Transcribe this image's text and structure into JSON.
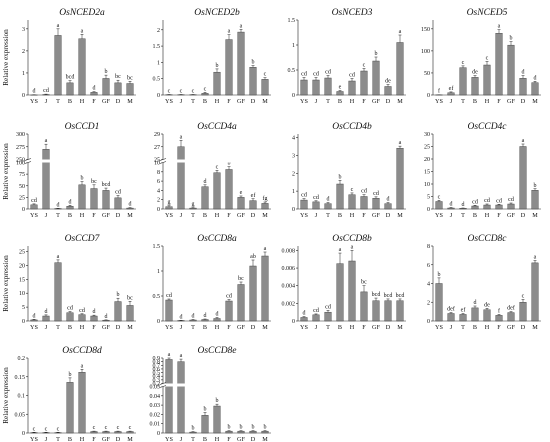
{
  "chart_data": [
    {
      "type": "bar",
      "title": "OsNCED2a",
      "ylabel": "Relative expression",
      "categories": [
        "YS",
        "J",
        "T",
        "B",
        "H",
        "F",
        "GF",
        "D",
        "M"
      ],
      "values": [
        0.003,
        0.02,
        2.7,
        0.55,
        2.55,
        0.12,
        0.75,
        0.55,
        0.52
      ],
      "errors": [
        0.01,
        0.02,
        0.3,
        0.1,
        0.2,
        0.03,
        0.15,
        0.12,
        0.1
      ],
      "letters": [
        "d",
        "cd",
        "a",
        "bcd",
        "a",
        "d",
        "b",
        "bc",
        "bc"
      ],
      "yticks": [
        0,
        1,
        2,
        3
      ],
      "ylim": [
        0,
        3.4
      ]
    },
    {
      "type": "bar",
      "title": "OsNCED2b",
      "ylabel": "",
      "categories": [
        "YS",
        "J",
        "T",
        "B",
        "H",
        "F",
        "GF",
        "D",
        "M"
      ],
      "values": [
        0.01,
        0.01,
        0.01,
        0.05,
        0.7,
        1.7,
        1.93,
        0.85,
        0.48
      ],
      "errors": [
        0.005,
        0.005,
        0.005,
        0.03,
        0.1,
        0.15,
        0.08,
        0.05,
        0.05
      ],
      "letters": [
        "c",
        "c",
        "c",
        "c",
        "b",
        "a",
        "a",
        "b",
        "c"
      ],
      "yticks": [
        0,
        0.5,
        1,
        1.5,
        2
      ],
      "ylim": [
        0,
        2.3
      ]
    },
    {
      "type": "bar",
      "title": "OsNCED3",
      "ylabel": "",
      "categories": [
        "YS",
        "J",
        "T",
        "B",
        "H",
        "F",
        "GF",
        "D",
        "M"
      ],
      "values": [
        0.3,
        0.3,
        0.34,
        0.07,
        0.28,
        0.48,
        0.68,
        0.17,
        1.05
      ],
      "errors": [
        0.05,
        0.05,
        0.05,
        0.02,
        0.05,
        0.05,
        0.08,
        0.04,
        0.15
      ],
      "letters": [
        "cd",
        "cd",
        "cd",
        "e",
        "cd",
        "c",
        "b",
        "de",
        "a"
      ],
      "yticks": [
        0,
        0.5,
        1,
        1.5
      ],
      "ylim": [
        0,
        1.5
      ]
    },
    {
      "type": "bar",
      "title": "OsNCED5",
      "ylabel": "",
      "categories": [
        "YS",
        "J",
        "T",
        "B",
        "H",
        "F",
        "GF",
        "D",
        "M"
      ],
      "values": [
        0.4,
        5,
        62,
        40,
        68,
        140,
        113,
        38,
        28
      ],
      "errors": [
        0.2,
        2,
        4,
        4,
        8,
        8,
        8,
        6,
        3
      ],
      "letters": [
        "f",
        "ef",
        "c",
        "de",
        "c",
        "a",
        "b",
        "d",
        "d"
      ],
      "yticks": [
        0,
        50,
        100,
        150
      ],
      "ylim": [
        0,
        170
      ]
    },
    {
      "type": "bar",
      "title": "OsCCD1",
      "ylabel": "Relative expression",
      "categories": [
        "YS",
        "J",
        "T",
        "B",
        "H",
        "F",
        "GF",
        "D",
        "M"
      ],
      "values": [
        9,
        270,
        1,
        6,
        52,
        44,
        40,
        24,
        2
      ],
      "errors": [
        2,
        10,
        0.5,
        2,
        7,
        8,
        5,
        5,
        1
      ],
      "letters": [
        "cd",
        "a",
        "d",
        "d",
        "b",
        "bc",
        "bcd",
        "cd",
        "d"
      ],
      "yticks": [
        0,
        25,
        50,
        75,
        100,
        250,
        275,
        300
      ],
      "ylim": [
        0,
        300
      ],
      "break": [
        100,
        250
      ]
    },
    {
      "type": "bar",
      "title": "OsCCD4a",
      "ylabel": "",
      "categories": [
        "YS",
        "J",
        "T",
        "B",
        "H",
        "F",
        "GF",
        "D",
        "M"
      ],
      "values": [
        0.5,
        27,
        0.2,
        4.8,
        7.8,
        8.5,
        2.5,
        1.8,
        1.2
      ],
      "errors": [
        0.2,
        1,
        0.1,
        0.4,
        0.5,
        0.6,
        0.3,
        0.4,
        0.3
      ],
      "letters": [
        "g",
        "a",
        "g",
        "d",
        "c",
        "b",
        "e",
        "ef",
        "fg"
      ],
      "yticks": [
        0,
        2,
        4,
        6,
        8,
        10,
        25,
        27,
        29
      ],
      "ylim": [
        0,
        29
      ],
      "break": [
        10,
        25
      ]
    },
    {
      "type": "bar",
      "title": "OsCCD4b",
      "ylabel": "",
      "categories": [
        "YS",
        "J",
        "T",
        "B",
        "H",
        "F",
        "GF",
        "D",
        "M"
      ],
      "values": [
        0.5,
        0.4,
        0.3,
        1.4,
        0.8,
        0.7,
        0.6,
        0.3,
        3.4
      ],
      "errors": [
        0.08,
        0.06,
        0.06,
        0.2,
        0.1,
        0.1,
        0.08,
        0.06,
        0.12
      ],
      "letters": [
        "cd",
        "cd",
        "d",
        "b",
        "c",
        "cd",
        "cd",
        "d",
        "a"
      ],
      "yticks": [
        0,
        1,
        2,
        3,
        4
      ],
      "ylim": [
        0,
        4.2
      ]
    },
    {
      "type": "bar",
      "title": "OsCCD4c",
      "ylabel": "",
      "categories": [
        "YS",
        "J",
        "T",
        "B",
        "H",
        "F",
        "GF",
        "D",
        "M"
      ],
      "values": [
        3,
        0.4,
        0.3,
        1.2,
        1.6,
        1.6,
        2,
        25,
        7.5
      ],
      "errors": [
        0.5,
        0.2,
        0.1,
        0.3,
        0.4,
        0.3,
        0.4,
        1,
        0.6
      ],
      "letters": [
        "c",
        "d",
        "d",
        "cd",
        "cd",
        "cd",
        "cd",
        "a",
        "b"
      ],
      "yticks": [
        0,
        5,
        10,
        15,
        20,
        25,
        30
      ],
      "ylim": [
        0,
        30
      ]
    },
    {
      "type": "bar",
      "title": "OsCCD7",
      "ylabel": "Relative expression",
      "categories": [
        "YS",
        "J",
        "T",
        "B",
        "H",
        "F",
        "GF",
        "D",
        "M"
      ],
      "values": [
        0.4,
        1.8,
        21,
        3,
        2.3,
        1.8,
        0.3,
        7,
        5.6
      ],
      "errors": [
        0.2,
        0.4,
        1,
        0.4,
        0.3,
        0.3,
        0.1,
        1.2,
        1.5
      ],
      "letters": [
        "d",
        "d",
        "a",
        "cd",
        "cd",
        "d",
        "d",
        "b",
        "bc"
      ],
      "yticks": [
        0,
        5,
        10,
        15,
        20,
        25
      ],
      "ylim": [
        0,
        27
      ]
    },
    {
      "type": "bar",
      "title": "OsCCD8a",
      "ylabel": "",
      "categories": [
        "YS",
        "J",
        "T",
        "B",
        "H",
        "F",
        "GF",
        "D",
        "M"
      ],
      "values": [
        0.42,
        0.01,
        0.02,
        0.03,
        0.05,
        0.4,
        0.73,
        1.1,
        1.3
      ],
      "errors": [
        0.02,
        0.005,
        0.01,
        0.01,
        0.02,
        0.03,
        0.05,
        0.12,
        0.08
      ],
      "letters": [
        "cd",
        "d",
        "d",
        "d",
        "d",
        "cd",
        "bc",
        "ab",
        "a"
      ],
      "yticks": [
        0,
        0.5,
        1,
        1.5
      ],
      "ylim": [
        0,
        1.5
      ]
    },
    {
      "type": "bar",
      "title": "OsCCD8b",
      "ylabel": "",
      "categories": [
        "YS",
        "J",
        "T",
        "B",
        "H",
        "F",
        "GF",
        "D",
        "M"
      ],
      "values": [
        0.0004,
        0.0007,
        0.001,
        0.0065,
        0.0068,
        0.0033,
        0.0023,
        0.0023,
        0.0023
      ],
      "errors": [
        0.0001,
        0.0001,
        0.0002,
        0.0012,
        0.0012,
        0.0007,
        0.0003,
        0.0002,
        0.0002
      ],
      "letters": [
        "d",
        "cd",
        "cd",
        "a",
        "a",
        "bc",
        "bcd",
        "bcd",
        "bcd"
      ],
      "yticks": [
        0,
        0.002,
        0.004,
        0.006,
        0.008
      ],
      "yticklabels": [
        "0",
        "0.002",
        "0.004",
        "0.006",
        "0.008"
      ],
      "ylim": [
        0,
        0.0085
      ]
    },
    {
      "type": "bar",
      "title": "OsCCD8c",
      "ylabel": "",
      "categories": [
        "YS",
        "J",
        "T",
        "B",
        "H",
        "F",
        "GF",
        "D",
        "M"
      ],
      "values": [
        4,
        0.8,
        0.7,
        1.4,
        1.2,
        0.6,
        0.9,
        2,
        6.2
      ],
      "errors": [
        0.6,
        0.1,
        0.1,
        0.2,
        0.15,
        0.1,
        0.1,
        0.3,
        0.25
      ],
      "letters": [
        "b",
        "def",
        "ef",
        "d",
        "de",
        "f",
        "def",
        "c",
        "a"
      ],
      "yticks": [
        0,
        2,
        4,
        6,
        8
      ],
      "ylim": [
        0,
        8
      ]
    },
    {
      "type": "bar",
      "title": "OsCCD8d",
      "ylabel": "Relative expression",
      "categories": [
        "YS",
        "J",
        "T",
        "B",
        "H",
        "F",
        "GF",
        "D",
        "M"
      ],
      "values": [
        0.001,
        0.001,
        0.001,
        0.135,
        0.162,
        0.004,
        0.004,
        0.004,
        0.004
      ],
      "errors": [
        0.001,
        0.001,
        0.001,
        0.012,
        0.008,
        0.001,
        0.001,
        0.001,
        0.001
      ],
      "letters": [
        "c",
        "c",
        "c",
        "b",
        "a",
        "c",
        "c",
        "c",
        "c"
      ],
      "yticks": [
        0,
        0.05,
        0.1,
        0.15,
        0.2
      ],
      "ylim": [
        0,
        0.2
      ]
    },
    {
      "type": "bar",
      "title": "OsCCD8e",
      "ylabel": "",
      "categories": [
        "YS",
        "J",
        "T",
        "B",
        "H",
        "F",
        "GF",
        "D",
        "M"
      ],
      "values": [
        0.86,
        0.8,
        0.001,
        0.019,
        0.029,
        0.002,
        0.002,
        0.002,
        0.002
      ],
      "errors": [
        0.04,
        0.07,
        0.0005,
        0.003,
        0.002,
        0.0005,
        0.0005,
        0.0005,
        0.0005
      ],
      "letters": [
        "a",
        "a",
        "b",
        "b",
        "b",
        "b",
        "b",
        "b",
        "b"
      ],
      "yticks": [
        0,
        0.01,
        0.02,
        0.03,
        0.04,
        0.05,
        0.2,
        0.3,
        0.4,
        0.5,
        0.6,
        0.7,
        0.8,
        0.9
      ],
      "ylim": [
        0,
        0.9
      ],
      "break": [
        0.05,
        0.2
      ]
    }
  ]
}
